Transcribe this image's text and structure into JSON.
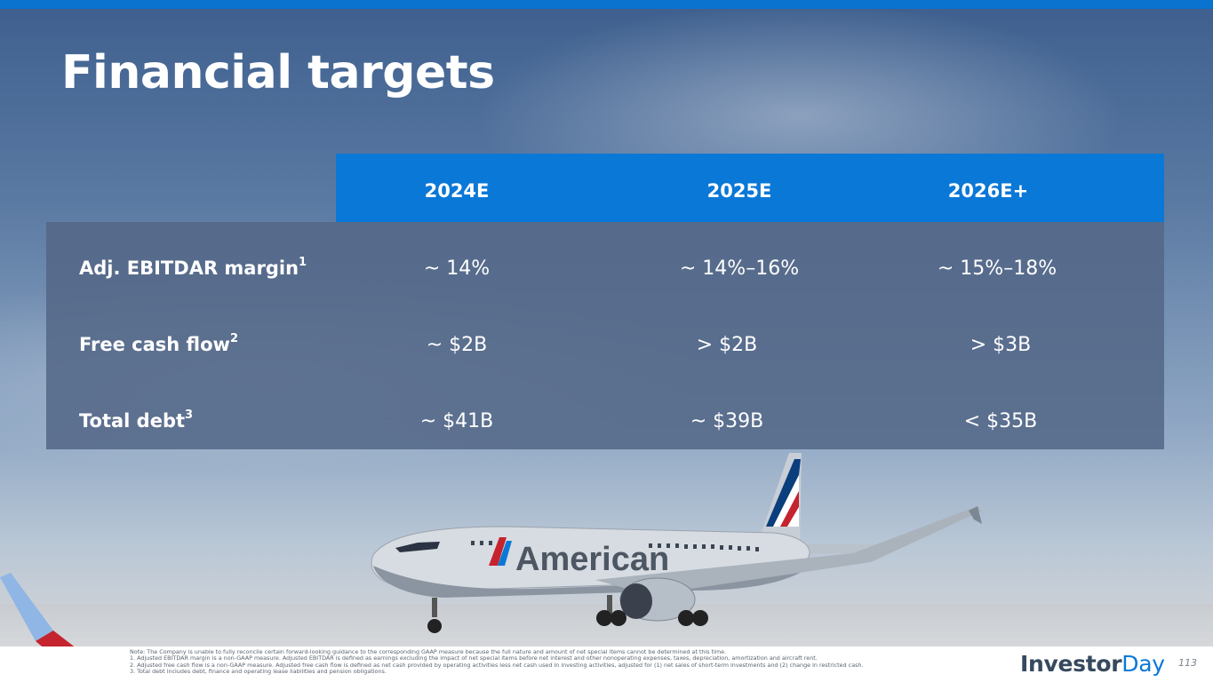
{
  "slide": {
    "title": "Financial targets",
    "page_number": "113"
  },
  "table": {
    "columns": [
      "2024E",
      "2025E",
      "2026E+"
    ],
    "rows": [
      {
        "label": "Adj. EBITDAR margin",
        "footnote": "1",
        "values": [
          "~ 14%",
          "~ 14%–16%",
          "~ 15%–18%"
        ]
      },
      {
        "label": "Free cash flow",
        "footnote": "2",
        "values": [
          "~ $2B",
          "> $2B",
          "> $3B"
        ]
      },
      {
        "label": "Total debt",
        "footnote": "3",
        "values": [
          "~ $41B",
          "~ $39B",
          "< $35B"
        ]
      }
    ]
  },
  "footer": {
    "notes": [
      "Note: The Company is unable to fully reconcile certain forward-looking guidance to the corresponding GAAP measure because the full nature and amount of net special items cannot be determined at this time.",
      "1. Adjusted EBITDAR margin is a non-GAAP measure. Adjusted EBITDAR is defined as earnings excluding the impact of net special items before net interest and other nonoperating expenses, taxes, depreciation, amortization and aircraft rent.",
      "2. Adjusted free cash flow is a non-GAAP measure. Adjusted free cash flow is defined as net cash provided by operating activities less net cash used in investing activities, adjusted for (1) net sales of short-term investments and (2) change in restricted cash.",
      "3. Total debt includes debt, finance and operating lease liabilities and pension obligations."
    ],
    "brand_part1": "Investor",
    "brand_part2": "Day"
  },
  "image": {
    "plane_livery_text": "American",
    "icon": "airplane-photo"
  },
  "colors": {
    "accent_blue": "#0a78d7",
    "table_body": "#546887",
    "brand_dark": "#36495e"
  }
}
